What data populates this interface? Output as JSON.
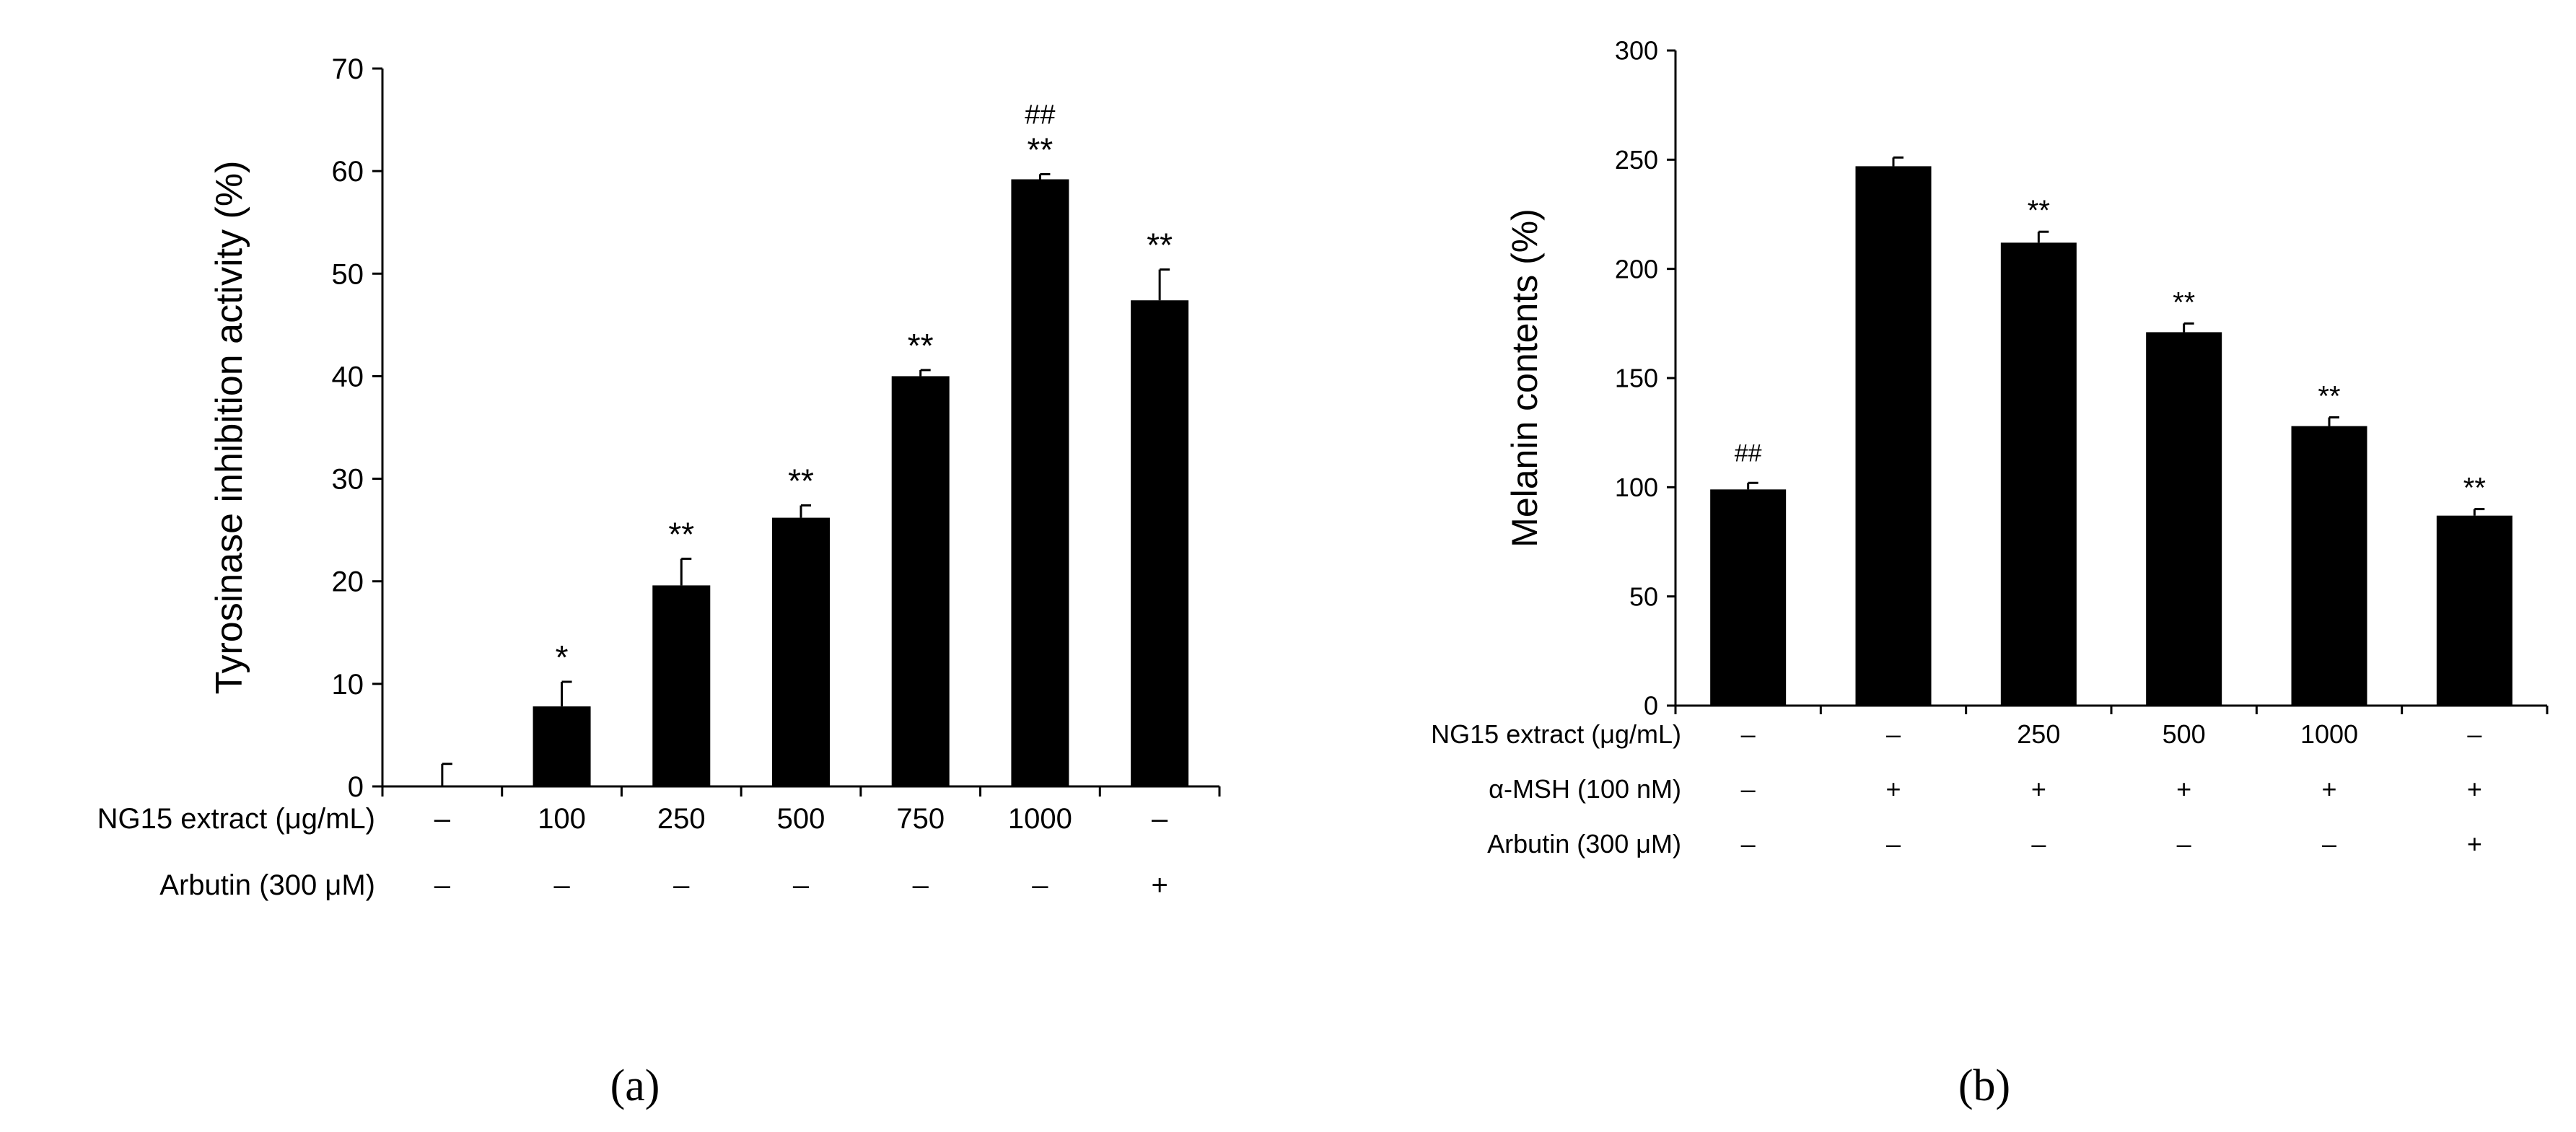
{
  "chart_data": [
    {
      "type": "bar",
      "ylabel": "Tyrosinase inhibition activity (%)",
      "ylim": [
        0,
        70
      ],
      "yticks": [
        "0",
        "10",
        "20",
        "30",
        "40",
        "50",
        "60",
        "70"
      ],
      "values": [
        0,
        7.8,
        19.6,
        26.2,
        40.0,
        59.2,
        47.4
      ],
      "errors": [
        2.2,
        2.4,
        2.6,
        1.2,
        0.6,
        0.5,
        3.0
      ],
      "annotations": [
        [
          "",
          ""
        ],
        [
          "",
          "*"
        ],
        [
          "",
          "**"
        ],
        [
          "",
          "**"
        ],
        [
          "",
          "**"
        ],
        [
          "##",
          "**"
        ],
        [
          "",
          "**"
        ]
      ],
      "treatments": [
        {
          "label": "NG15 extract (μg/mL)",
          "values": [
            "–",
            "100",
            "250",
            "500",
            "750",
            "1000",
            "–"
          ]
        },
        {
          "label": "Arbutin (300 μM)",
          "values": [
            "–",
            "–",
            "–",
            "–",
            "–",
            "–",
            "+"
          ]
        }
      ],
      "panel": "(a)"
    },
    {
      "type": "bar",
      "ylabel": "Melanin contents (%)",
      "ylim": [
        0,
        300
      ],
      "yticks": [
        "0",
        "50",
        "100",
        "150",
        "200",
        "250",
        "300"
      ],
      "values": [
        99,
        247,
        212,
        171,
        128,
        87
      ],
      "errors": [
        3,
        4,
        5,
        4,
        4,
        3
      ],
      "annotations": [
        [
          "##"
        ],
        [
          ""
        ],
        [
          "**"
        ],
        [
          "**"
        ],
        [
          "**"
        ],
        [
          "**"
        ]
      ],
      "treatments": [
        {
          "label": "NG15 extract (μg/mL)",
          "values": [
            "–",
            "–",
            "250",
            "500",
            "1000",
            "–"
          ]
        },
        {
          "label": "α-MSH (100 nM)",
          "values": [
            "–",
            "+",
            "+",
            "+",
            "+",
            "+"
          ]
        },
        {
          "label": "Arbutin (300 μM)",
          "values": [
            "–",
            "–",
            "–",
            "–",
            "–",
            "+"
          ]
        }
      ],
      "panel": "(b)"
    }
  ]
}
